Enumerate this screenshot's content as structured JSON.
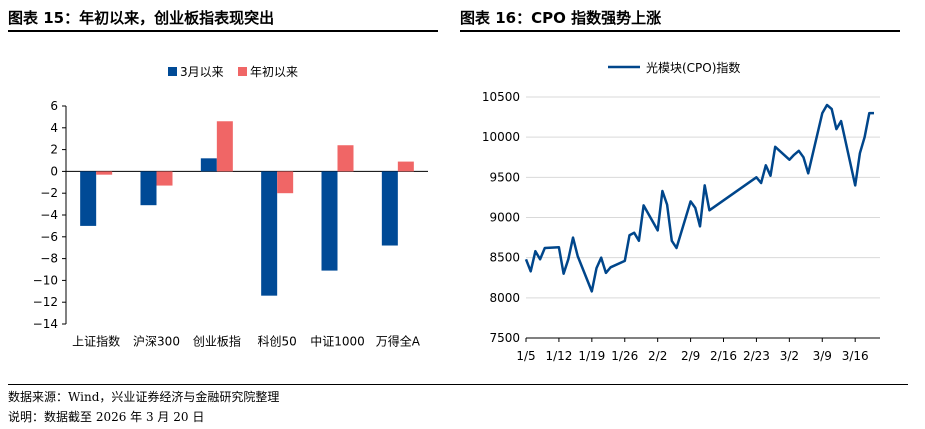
{
  "left_figure": {
    "title": "图表 15：年初以来，创业板指表现突出"
  },
  "right_figure": {
    "title": "图表 16：CPO 指数强势上涨"
  },
  "footer": {
    "source": "数据来源：Wind，兴业证券经济与金融研究院整理",
    "note": "说明：数据截至 2026 年 3 月 20 日"
  },
  "colors": {
    "series_blue": "#004A96",
    "series_red": "#F06666",
    "line_blue": "#00468B"
  },
  "chart_data": [
    {
      "type": "bar",
      "categories": [
        "上证指数",
        "沪深300",
        "创业板指",
        "科创50",
        "中证1000",
        "万得全A"
      ],
      "series": [
        {
          "name": "3月以来",
          "values": [
            -5.0,
            -3.1,
            1.2,
            -11.4,
            -9.1,
            -6.8
          ]
        },
        {
          "name": "年初以来",
          "values": [
            -0.3,
            -1.3,
            4.6,
            -2.0,
            2.4,
            0.9
          ]
        }
      ],
      "ylim": [
        -14,
        6
      ],
      "yticks": [
        "6",
        "4",
        "2",
        "0",
        "−2",
        "−4",
        "−6",
        "−8",
        "−10",
        "−12",
        "−14"
      ],
      "legend_position": "top"
    },
    {
      "type": "line",
      "series": [
        {
          "name": "光模块(CPO)指数",
          "x": [
            0,
            1,
            2,
            3,
            4,
            7,
            8,
            9,
            10,
            11,
            14,
            15,
            16,
            17,
            18,
            21,
            22,
            23,
            24,
            25,
            28,
            29,
            30,
            31,
            32,
            35,
            36,
            37,
            38,
            39,
            49,
            50,
            51,
            52,
            53,
            56,
            57,
            58,
            59,
            60,
            63,
            64,
            65,
            66,
            67,
            70,
            71,
            72,
            73,
            74
          ],
          "values": [
            8480,
            8330,
            8580,
            8480,
            8620,
            8630,
            8300,
            8480,
            8750,
            8520,
            8080,
            8370,
            8500,
            8310,
            8380,
            8460,
            8780,
            8810,
            8710,
            9150,
            8840,
            9330,
            9160,
            8710,
            8620,
            9200,
            9120,
            8890,
            9400,
            9090,
            9500,
            9430,
            9650,
            9520,
            9880,
            9720,
            9780,
            9830,
            9750,
            9550,
            10300,
            10400,
            10350,
            10100,
            10200,
            9400,
            9800,
            10000,
            10300,
            10300
          ]
        }
      ],
      "x_tick_labels": [
        "1/5",
        "1/12",
        "1/19",
        "1/26",
        "2/2",
        "2/9",
        "2/16",
        "2/23",
        "3/2",
        "3/9",
        "3/16"
      ],
      "ylim": [
        7500,
        10500
      ],
      "yticks": [
        "10500",
        "10000",
        "9500",
        "9000",
        "8500",
        "8000",
        "7500"
      ],
      "legend_position": "top"
    }
  ]
}
